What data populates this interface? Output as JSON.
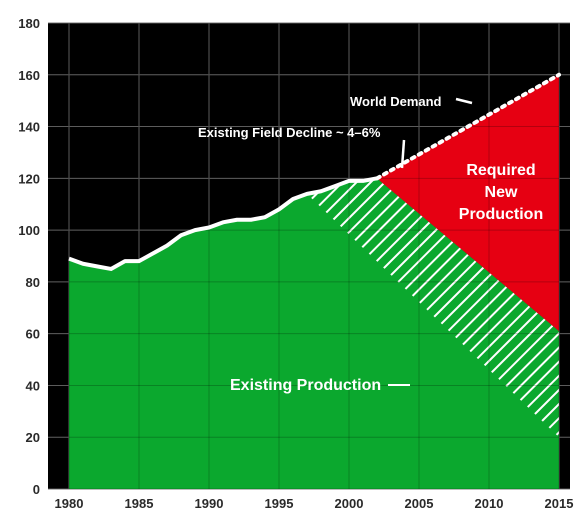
{
  "chart_data": {
    "type": "area",
    "xlim": [
      1980,
      2015
    ],
    "ylim": [
      0,
      180
    ],
    "x_ticks": [
      "1980",
      "1985",
      "1990",
      "1995",
      "2000",
      "2005",
      "2010",
      "2015"
    ],
    "y_ticks": [
      "0",
      "20",
      "40",
      "60",
      "80",
      "100",
      "120",
      "140",
      "160",
      "180"
    ],
    "grid": true,
    "colors": {
      "background": "#000000",
      "grid": "#777777",
      "existing_production": "#0ba82e",
      "required_new_production": "#e60012",
      "demand_line": "#ffffff"
    },
    "series": [
      {
        "key": "historical",
        "x": [
          1980,
          1981,
          1982,
          1983,
          1984,
          1985,
          1986,
          1987,
          1988,
          1989,
          1990,
          1991,
          1992,
          1993,
          1994,
          1995,
          1996,
          1997,
          1998,
          1999,
          2000,
          2001,
          2002
        ],
        "values": [
          89,
          87,
          86,
          85,
          88,
          88,
          91,
          94,
          98,
          100,
          101,
          103,
          104,
          104,
          105,
          108,
          112,
          114,
          115,
          117,
          119,
          119,
          120
        ]
      },
      {
        "key": "world_demand",
        "x": [
          2002,
          2015
        ],
        "values": [
          120,
          160
        ]
      },
      {
        "key": "decline_upper",
        "x": [
          2002,
          2015
        ],
        "values": [
          120,
          61
        ]
      },
      {
        "key": "decline_lower",
        "x": [
          1997,
          2015
        ],
        "values": [
          114,
          20
        ]
      }
    ],
    "annotations": {
      "world_demand": "World Demand",
      "field_decline": "Existing Field Decline ~ 4–6%",
      "required_new_production": [
        "Required",
        "New",
        "Production"
      ],
      "existing_production": "Existing Production"
    }
  }
}
